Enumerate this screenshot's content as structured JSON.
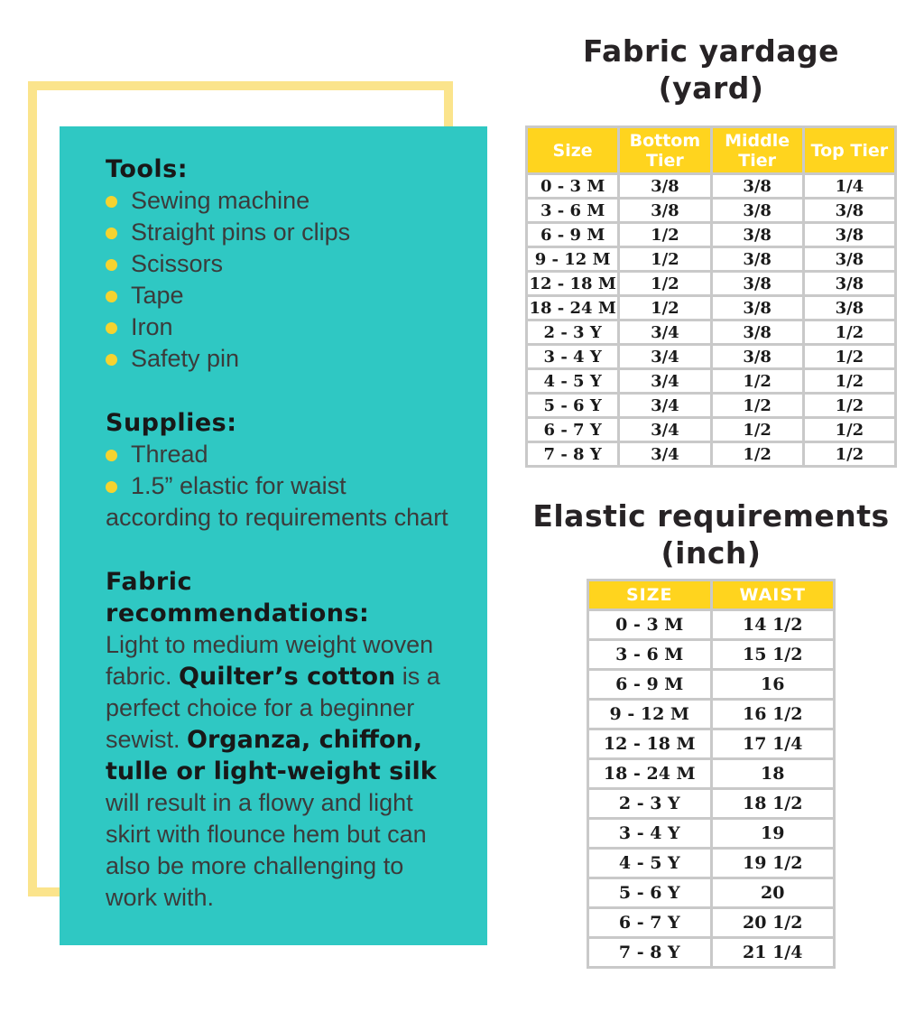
{
  "colors": {
    "teal_panel": "#2FC8C3",
    "frame_yellow": "#FBE48C",
    "table_header_gold": "#FFD41E",
    "bullet_gold": "#F5D32F",
    "grid_gray": "#C9C9C9"
  },
  "panel": {
    "tools_heading": "Tools:",
    "tools_items": [
      "Sewing machine",
      "Straight pins or clips",
      "Scissors",
      "Tape",
      "Iron",
      "Safety pin"
    ],
    "supplies_heading": "Supplies:",
    "supplies_items": [
      "Thread",
      "1.5” elastic for waist according to requirements chart"
    ],
    "fabric_heading": "Fabric recommendations:",
    "fabric_segments": {
      "s0": "Light to medium weight woven fabric. ",
      "s1": "Quilter’s cotton",
      "s2": " is a perfect choice for a beginner sewist. ",
      "s3": "Organza, chiffon, tulle or light-weight silk",
      "s4": " will result in a flowy and light skirt with flounce hem but can also be more challenging to work with."
    }
  },
  "fabric_yardage": {
    "title": "Fabric yardage",
    "subtitle": "(yard)",
    "headers": [
      "Size",
      "Bottom Tier",
      "Middle Tier",
      "Top Tier"
    ],
    "rows": [
      [
        "0 - 3 M",
        "3/8",
        "3/8",
        "1/4"
      ],
      [
        "3 - 6 M",
        "3/8",
        "3/8",
        "3/8"
      ],
      [
        "6 - 9 M",
        "1/2",
        "3/8",
        "3/8"
      ],
      [
        "9 - 12 M",
        "1/2",
        "3/8",
        "3/8"
      ],
      [
        "12 - 18 M",
        "1/2",
        "3/8",
        "3/8"
      ],
      [
        "18 - 24 M",
        "1/2",
        "3/8",
        "3/8"
      ],
      [
        "2 - 3 Y",
        "3/4",
        "3/8",
        "1/2"
      ],
      [
        "3 - 4 Y",
        "3/4",
        "3/8",
        "1/2"
      ],
      [
        "4 - 5 Y",
        "3/4",
        "1/2",
        "1/2"
      ],
      [
        "5 - 6 Y",
        "3/4",
        "1/2",
        "1/2"
      ],
      [
        "6 - 7 Y",
        "3/4",
        "1/2",
        "1/2"
      ],
      [
        "7 - 8 Y",
        "3/4",
        "1/2",
        "1/2"
      ]
    ]
  },
  "elastic_requirements": {
    "title": "Elastic requirements",
    "subtitle": "(inch)",
    "headers": [
      "SIZE",
      "WAIST"
    ],
    "rows": [
      [
        "0 - 3 M",
        "14 1/2"
      ],
      [
        "3 - 6 M",
        "15 1/2"
      ],
      [
        "6 - 9 M",
        "16"
      ],
      [
        "9 - 12 M",
        "16 1/2"
      ],
      [
        "12 - 18 M",
        "17 1/4"
      ],
      [
        "18 - 24 M",
        "18"
      ],
      [
        "2 - 3 Y",
        "18 1/2"
      ],
      [
        "3 - 4 Y",
        "19"
      ],
      [
        "4 - 5 Y",
        "19 1/2"
      ],
      [
        "5 - 6 Y",
        "20"
      ],
      [
        "6 - 7 Y",
        "20 1/2"
      ],
      [
        "7 - 8 Y",
        "21 1/4"
      ]
    ]
  }
}
